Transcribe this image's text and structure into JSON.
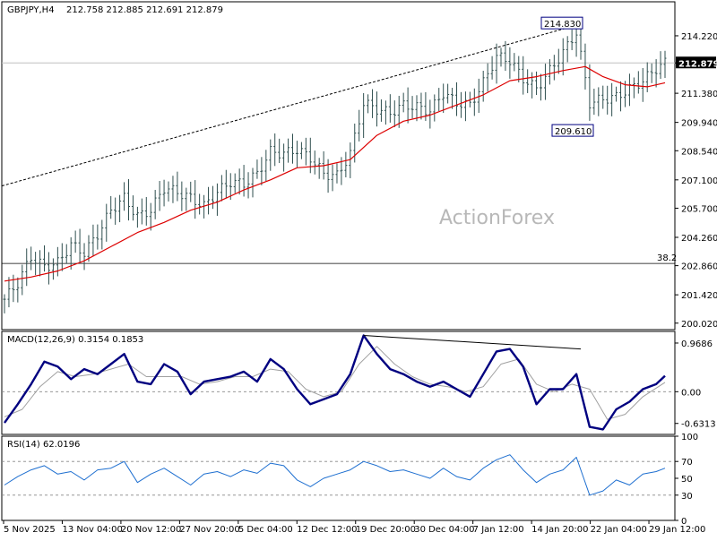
{
  "header": {
    "symbol": "GBPJPY,H4",
    "ohlc": "212.758 212.885 212.691 212.879"
  },
  "watermark": "ActionForex",
  "colors": {
    "bars": "#2f4f4f",
    "ma": "#dd0000",
    "macd": "#000080",
    "signal": "#a0a0a0",
    "grid": "#000000"
  },
  "chart_data": [
    {
      "type": "line",
      "panel": "price",
      "ylim": [
        199.7,
        215.9
      ],
      "y_ticks": [
        "214.220",
        "212.879",
        "211.380",
        "209.940",
        "208.540",
        "207.100",
        "205.700",
        "204.260",
        "202.860",
        "201.420",
        "200.020"
      ],
      "y_tick_values": [
        214.22,
        212.879,
        211.38,
        209.94,
        208.54,
        207.1,
        205.7,
        204.26,
        202.86,
        201.42,
        200.02
      ],
      "current_price": "212.879",
      "fib_label": "38.2",
      "fib_level": 202.97,
      "annotations": [
        {
          "label": "214.830",
          "value": 214.83
        },
        {
          "label": "209.610",
          "value": 209.61
        }
      ],
      "series": [
        {
          "points": [
            [
              0,
              201.2
            ],
            [
              3,
              202.0
            ],
            [
              6,
              203.3
            ],
            [
              9,
              202.8
            ],
            [
              12,
              203.0
            ],
            [
              15,
              203.9
            ],
            [
              18,
              203.5
            ],
            [
              21,
              204.4
            ],
            [
              24,
              205.6
            ],
            [
              27,
              206.2
            ],
            [
              30,
              205.3
            ],
            [
              33,
              205.6
            ],
            [
              36,
              206.7
            ],
            [
              39,
              206.5
            ],
            [
              42,
              206.2
            ],
            [
              45,
              205.8
            ],
            [
              48,
              206.5
            ],
            [
              51,
              207.0
            ],
            [
              54,
              206.9
            ],
            [
              57,
              207.4
            ],
            [
              60,
              208.5
            ],
            [
              63,
              208.4
            ],
            [
              66,
              208.6
            ],
            [
              69,
              208.2
            ],
            [
              72,
              207.4
            ],
            [
              75,
              207.3
            ],
            [
              78,
              208.4
            ],
            [
              81,
              210.9
            ],
            [
              84,
              210.6
            ],
            [
              87,
              210.4
            ],
            [
              90,
              210.8
            ],
            [
              93,
              210.7
            ],
            [
              96,
              210.5
            ],
            [
              99,
              211.4
            ],
            [
              102,
              210.9
            ],
            [
              105,
              210.8
            ],
            [
              108,
              211.9
            ],
            [
              111,
              213.2
            ],
            [
              114,
              213.0
            ],
            [
              117,
              212.1
            ],
            [
              120,
              211.6
            ],
            [
              123,
              212.5
            ],
            [
              126,
              213.4
            ],
            [
              129,
              214.4
            ],
            [
              132,
              210.9
            ],
            [
              135,
              211.1
            ],
            [
              138,
              211.2
            ],
            [
              141,
              211.6
            ],
            [
              144,
              212.0
            ],
            [
              147,
              212.6
            ],
            [
              149,
              212.879
            ]
          ]
        },
        {
          "points": [
            [
              0,
              202.1
            ],
            [
              6,
              202.3
            ],
            [
              12,
              202.6
            ],
            [
              18,
              203.1
            ],
            [
              24,
              203.8
            ],
            [
              30,
              204.5
            ],
            [
              36,
              205.0
            ],
            [
              42,
              205.6
            ],
            [
              48,
              206.0
            ],
            [
              54,
              206.6
            ],
            [
              60,
              207.1
            ],
            [
              66,
              207.7
            ],
            [
              72,
              207.8
            ],
            [
              78,
              208.1
            ],
            [
              84,
              209.3
            ],
            [
              90,
              210.0
            ],
            [
              96,
              210.3
            ],
            [
              102,
              210.8
            ],
            [
              108,
              211.3
            ],
            [
              114,
              212.0
            ],
            [
              120,
              212.2
            ],
            [
              126,
              212.5
            ],
            [
              131,
              212.7
            ],
            [
              135,
              212.2
            ],
            [
              140,
              211.8
            ],
            [
              145,
              211.7
            ],
            [
              149,
              211.9
            ]
          ]
        },
        {
          "points": [
            [
              0,
              206.8
            ],
            [
              130,
              214.8
            ]
          ]
        }
      ]
    },
    {
      "type": "line",
      "panel": "macd",
      "label": "MACD(12,26,9) 0.3154 0.1853",
      "ylim": [
        -0.85,
        1.2
      ],
      "y_ticks": [
        "0.9686",
        "0.00",
        "-0.6313"
      ],
      "y_tick_values": [
        0.9686,
        0.0,
        -0.6313
      ],
      "series": [
        {
          "points": [
            [
              0,
              -0.62
            ],
            [
              3,
              -0.25
            ],
            [
              6,
              0.15
            ],
            [
              9,
              0.6
            ],
            [
              12,
              0.5
            ],
            [
              15,
              0.25
            ],
            [
              18,
              0.45
            ],
            [
              21,
              0.35
            ],
            [
              24,
              0.55
            ],
            [
              27,
              0.75
            ],
            [
              30,
              0.2
            ],
            [
              33,
              0.15
            ],
            [
              36,
              0.55
            ],
            [
              39,
              0.4
            ],
            [
              42,
              -0.05
            ],
            [
              45,
              0.2
            ],
            [
              48,
              0.25
            ],
            [
              51,
              0.3
            ],
            [
              54,
              0.4
            ],
            [
              57,
              0.2
            ],
            [
              60,
              0.65
            ],
            [
              63,
              0.45
            ],
            [
              66,
              0.05
            ],
            [
              69,
              -0.25
            ],
            [
              72,
              -0.15
            ],
            [
              75,
              -0.05
            ],
            [
              78,
              0.35
            ],
            [
              81,
              1.12
            ],
            [
              84,
              0.75
            ],
            [
              87,
              0.45
            ],
            [
              90,
              0.35
            ],
            [
              93,
              0.2
            ],
            [
              96,
              0.1
            ],
            [
              99,
              0.2
            ],
            [
              102,
              0.05
            ],
            [
              105,
              -0.1
            ],
            [
              108,
              0.35
            ],
            [
              111,
              0.8
            ],
            [
              114,
              0.85
            ],
            [
              117,
              0.5
            ],
            [
              120,
              -0.25
            ],
            [
              123,
              0.05
            ],
            [
              126,
              0.05
            ],
            [
              129,
              0.35
            ],
            [
              132,
              -0.7
            ],
            [
              135,
              -0.75
            ],
            [
              138,
              -0.35
            ],
            [
              141,
              -0.2
            ],
            [
              144,
              0.05
            ],
            [
              147,
              0.15
            ],
            [
              149,
              0.3154
            ]
          ]
        },
        {
          "points": [
            [
              0,
              -0.5
            ],
            [
              4,
              -0.35
            ],
            [
              8,
              0.1
            ],
            [
              12,
              0.4
            ],
            [
              16,
              0.3
            ],
            [
              20,
              0.35
            ],
            [
              24,
              0.45
            ],
            [
              28,
              0.55
            ],
            [
              32,
              0.3
            ],
            [
              36,
              0.3
            ],
            [
              40,
              0.3
            ],
            [
              44,
              0.15
            ],
            [
              48,
              0.2
            ],
            [
              52,
              0.3
            ],
            [
              56,
              0.3
            ],
            [
              60,
              0.45
            ],
            [
              64,
              0.4
            ],
            [
              68,
              0.05
            ],
            [
              72,
              -0.1
            ],
            [
              76,
              0.0
            ],
            [
              80,
              0.55
            ],
            [
              84,
              0.9
            ],
            [
              88,
              0.55
            ],
            [
              92,
              0.3
            ],
            [
              96,
              0.15
            ],
            [
              100,
              0.1
            ],
            [
              104,
              0.0
            ],
            [
              108,
              0.1
            ],
            [
              112,
              0.55
            ],
            [
              116,
              0.65
            ],
            [
              120,
              0.15
            ],
            [
              124,
              0.0
            ],
            [
              128,
              0.15
            ],
            [
              132,
              0.05
            ],
            [
              136,
              -0.55
            ],
            [
              140,
              -0.45
            ],
            [
              144,
              -0.1
            ],
            [
              149,
              0.1853
            ]
          ]
        },
        {
          "points": [
            [
              81,
              1.12
            ],
            [
              130,
              0.85
            ]
          ]
        }
      ]
    },
    {
      "type": "line",
      "panel": "rsi",
      "label": "RSI(14) 62.0196",
      "ylim": [
        0,
        100
      ],
      "y_ticks": [
        "100",
        "70",
        "50",
        "30",
        "0"
      ],
      "y_tick_values": [
        100,
        70,
        50,
        30,
        0
      ],
      "series": [
        {
          "points": [
            [
              0,
              42
            ],
            [
              3,
              52
            ],
            [
              6,
              60
            ],
            [
              9,
              65
            ],
            [
              12,
              55
            ],
            [
              15,
              58
            ],
            [
              18,
              48
            ],
            [
              21,
              60
            ],
            [
              24,
              62
            ],
            [
              27,
              70
            ],
            [
              30,
              45
            ],
            [
              33,
              55
            ],
            [
              36,
              62
            ],
            [
              39,
              52
            ],
            [
              42,
              42
            ],
            [
              45,
              55
            ],
            [
              48,
              58
            ],
            [
              51,
              52
            ],
            [
              54,
              60
            ],
            [
              57,
              56
            ],
            [
              60,
              68
            ],
            [
              63,
              65
            ],
            [
              66,
              48
            ],
            [
              69,
              40
            ],
            [
              72,
              50
            ],
            [
              75,
              55
            ],
            [
              78,
              60
            ],
            [
              81,
              70
            ],
            [
              84,
              65
            ],
            [
              87,
              58
            ],
            [
              90,
              60
            ],
            [
              93,
              55
            ],
            [
              96,
              50
            ],
            [
              99,
              62
            ],
            [
              102,
              52
            ],
            [
              105,
              48
            ],
            [
              108,
              62
            ],
            [
              111,
              72
            ],
            [
              114,
              78
            ],
            [
              117,
              60
            ],
            [
              120,
              45
            ],
            [
              123,
              55
            ],
            [
              126,
              60
            ],
            [
              129,
              75
            ],
            [
              132,
              30
            ],
            [
              135,
              35
            ],
            [
              138,
              48
            ],
            [
              141,
              42
            ],
            [
              144,
              55
            ],
            [
              147,
              58
            ],
            [
              149,
              62
            ]
          ]
        }
      ]
    }
  ],
  "x_labels": [
    "5 Nov 2025",
    "13 Nov 04:00",
    "20 Nov 12:00",
    "27 Nov 20:00",
    "5 Dec 04:00",
    "12 Dec 12:00",
    "19 Dec 20:00",
    "30 Dec 04:00",
    "7 Jan 12:00",
    "14 Jan 20:00",
    "22 Jan 04:00",
    "29 Jan 12:00"
  ]
}
